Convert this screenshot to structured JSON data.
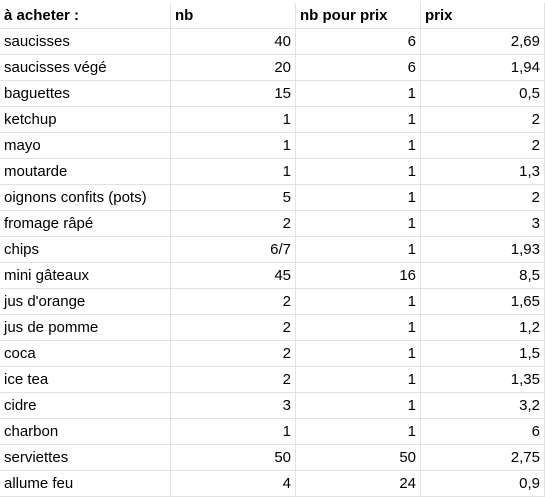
{
  "header": {
    "col_item": "à acheter :",
    "col_nb": "nb",
    "col_nb_pour_prix": "nb pour prix",
    "col_prix": "prix"
  },
  "rows": [
    {
      "item": "saucisses",
      "nb": "40",
      "nb_pour_prix": "6",
      "prix": "2,69"
    },
    {
      "item": "saucisses végé",
      "nb": "20",
      "nb_pour_prix": "6",
      "prix": "1,94"
    },
    {
      "item": "baguettes",
      "nb": "15",
      "nb_pour_prix": "1",
      "prix": "0,5"
    },
    {
      "item": "ketchup",
      "nb": "1",
      "nb_pour_prix": "1",
      "prix": "2"
    },
    {
      "item": "mayo",
      "nb": "1",
      "nb_pour_prix": "1",
      "prix": "2"
    },
    {
      "item": "moutarde",
      "nb": "1",
      "nb_pour_prix": "1",
      "prix": "1,3"
    },
    {
      "item": "oignons confits (pots)",
      "nb": "5",
      "nb_pour_prix": "1",
      "prix": "2"
    },
    {
      "item": "fromage râpé",
      "nb": "2",
      "nb_pour_prix": "1",
      "prix": "3"
    },
    {
      "item": "chips",
      "nb": "6/7",
      "nb_pour_prix": "1",
      "prix": "1,93"
    },
    {
      "item": "mini gâteaux",
      "nb": "45",
      "nb_pour_prix": "16",
      "prix": "8,5"
    },
    {
      "item": "jus d'orange",
      "nb": "2",
      "nb_pour_prix": "1",
      "prix": "1,65"
    },
    {
      "item": "jus de pomme",
      "nb": "2",
      "nb_pour_prix": "1",
      "prix": "1,2"
    },
    {
      "item": "coca",
      "nb": "2",
      "nb_pour_prix": "1",
      "prix": "1,5"
    },
    {
      "item": "ice tea",
      "nb": "2",
      "nb_pour_prix": "1",
      "prix": "1,35"
    },
    {
      "item": "cidre",
      "nb": "3",
      "nb_pour_prix": "1",
      "prix": "3,2"
    },
    {
      "item": "charbon",
      "nb": "1",
      "nb_pour_prix": "1",
      "prix": "6"
    },
    {
      "item": "serviettes",
      "nb": "50",
      "nb_pour_prix": "50",
      "prix": "2,75"
    },
    {
      "item": "allume feu",
      "nb": "4",
      "nb_pour_prix": "24",
      "prix": "0,9"
    }
  ]
}
